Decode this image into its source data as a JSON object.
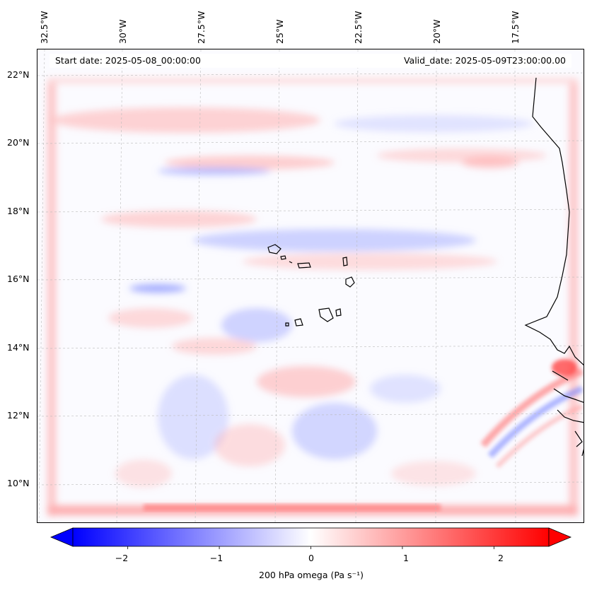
{
  "map": {
    "lon_labels": [
      "32.5°W",
      "30°W",
      "27.5°W",
      "25°W",
      "22.5°W",
      "20°W",
      "17.5°W"
    ],
    "lat_labels": [
      "22°N",
      "20°N",
      "18°N",
      "16°N",
      "14°N",
      "12°N",
      "10°N"
    ],
    "start_date": "Start date: 2025-05-08_00:00:00",
    "valid_date": "Valid_date: 2025-05-09T23:00:00.00",
    "field_colors": {
      "negative": "#4a5cff",
      "positive": "#ff4a4a",
      "neutral": "#ffffff"
    }
  },
  "colorbar": {
    "ticks": [
      "−2",
      "−1",
      "0",
      "1",
      "2"
    ],
    "tick_values": [
      -2,
      -1,
      0,
      1,
      2
    ],
    "range": [
      -2.6,
      2.6
    ],
    "label": "200 hPa omega (Pa s⁻¹)",
    "cmap": "bwr"
  }
}
